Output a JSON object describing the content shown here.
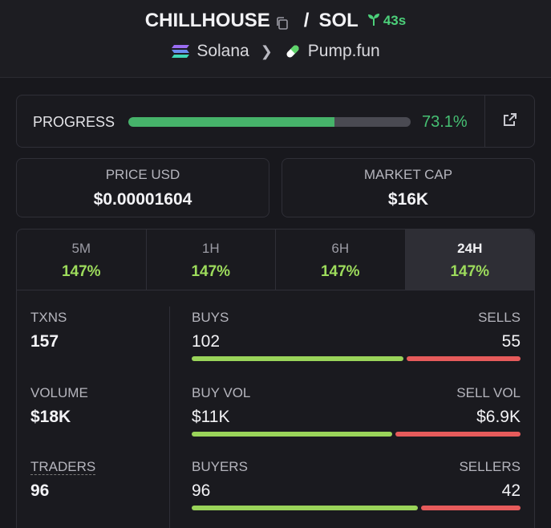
{
  "header": {
    "token": "CHILLHOUSE",
    "separator": "/",
    "quote": "SOL",
    "age": "43s",
    "chain": "Solana",
    "platform": "Pump.fun",
    "icons": [
      "copy-icon",
      "seedling-icon",
      "solana-logo-icon",
      "chevron-right-icon",
      "pill-icon"
    ]
  },
  "progress": {
    "label": "PROGRESS",
    "value_text": "73.1%",
    "fraction": 0.731,
    "icon": "external-link-icon"
  },
  "price": {
    "label": "PRICE USD",
    "value": "$0.00001604"
  },
  "market_cap": {
    "label": "MARKET CAP",
    "value": "$16K"
  },
  "tabs": [
    {
      "label": "5M",
      "value": "147%"
    },
    {
      "label": "1H",
      "value": "147%"
    },
    {
      "label": "6H",
      "value": "147%"
    },
    {
      "label": "24H",
      "value": "147%",
      "active": true
    }
  ],
  "metrics": {
    "txns": {
      "label": "TXNS",
      "value": "157"
    },
    "volume": {
      "label": "VOLUME",
      "value": "$18K"
    },
    "traders": {
      "label": "TRADERS",
      "value": "96"
    }
  },
  "splits": {
    "buys": {
      "left_label": "BUYS",
      "right_label": "SELLS",
      "left_value": "102",
      "right_value": "55",
      "buy_fraction": 0.65
    },
    "volume": {
      "left_label": "BUY VOL",
      "right_label": "SELL VOL",
      "left_value": "$11K",
      "right_value": "$6.9K",
      "buy_fraction": 0.615
    },
    "buyers": {
      "left_label": "BUYERS",
      "right_label": "SELLERS",
      "left_value": "96",
      "right_value": "42",
      "buy_fraction": 0.695
    }
  },
  "colors": {
    "accent_green": "#46b36a",
    "change_green": "#9ddc5c",
    "buy_bar": "#9ad45a",
    "sell_bar": "#e65b5b",
    "background": "#18181d"
  }
}
